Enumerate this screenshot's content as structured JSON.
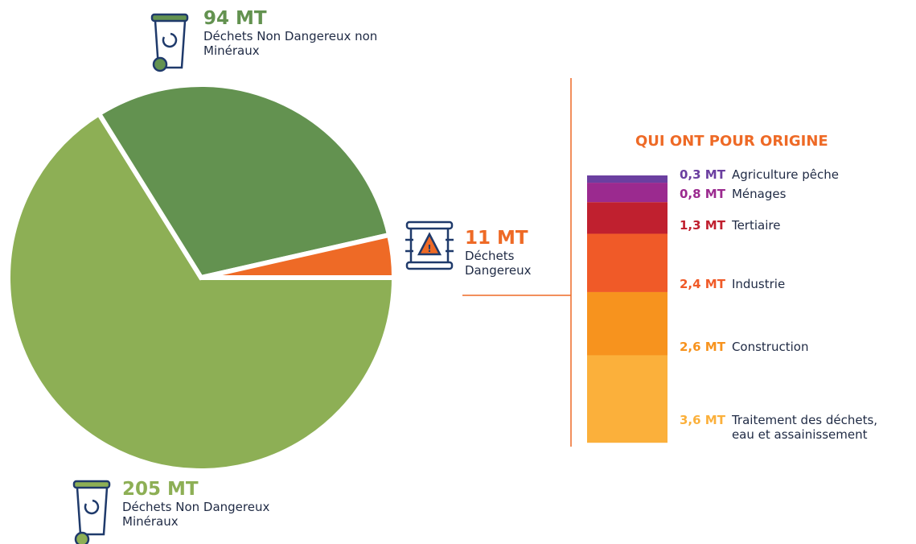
{
  "chart_data": [
    {
      "type": "pie",
      "categories": [
        "Déchets Non Dangereux Minéraux",
        "Déchets Non Dangereux non Minéraux",
        "Déchets Dangereux"
      ],
      "values": [
        205,
        94,
        11
      ],
      "value_labels": [
        "205 MT",
        "94 MT",
        "11 MT"
      ],
      "colors": [
        "#8daf55",
        "#639250",
        "#ee6a26"
      ]
    },
    {
      "type": "stacked-bar",
      "title": "QUI ONT POUR ORIGINE",
      "categories": [
        "Agriculture pêche",
        "Ménages",
        "Tertiaire",
        "Industrie",
        "Construction",
        "Traitement des déchets, eau et assainissement"
      ],
      "values": [
        0.3,
        0.8,
        1.3,
        2.4,
        2.6,
        3.6
      ],
      "value_labels": [
        "0,3 MT",
        "0,8 MT",
        "1,3 MT",
        "2,4 MT",
        "2,6 MT",
        "3,6 MT"
      ],
      "colors": [
        "#6b3fa0",
        "#9b2a8f",
        "#c0202f",
        "#f05a28",
        "#f7931e",
        "#fbb03b"
      ]
    }
  ]
}
